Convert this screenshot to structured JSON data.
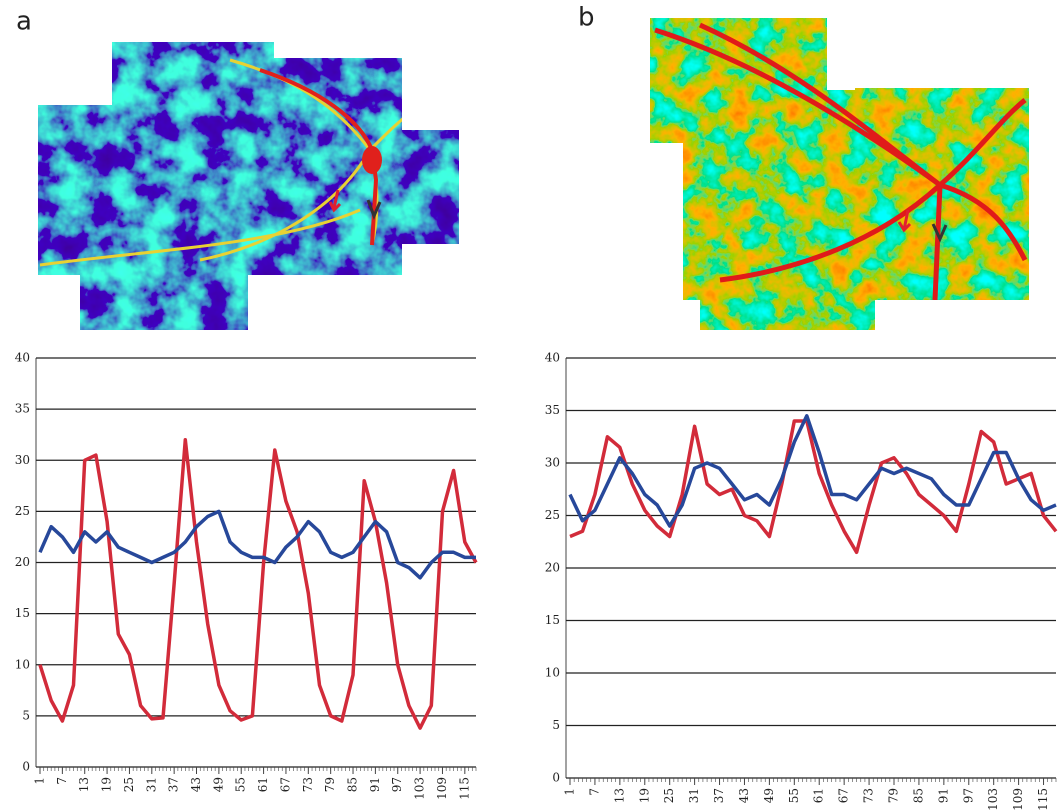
{
  "panel_labels": [
    "a",
    "b"
  ],
  "chart_data": [
    {
      "type": "line",
      "x": [
        1,
        4,
        7,
        10,
        13,
        16,
        19,
        22,
        25,
        28,
        31,
        34,
        37,
        40,
        43,
        46,
        49,
        52,
        55,
        58,
        61,
        64,
        67,
        70,
        73,
        76,
        79,
        82,
        85,
        88,
        91,
        94,
        97,
        100,
        103,
        106,
        109,
        112,
        115,
        118
      ],
      "xlim": [
        1,
        118
      ],
      "xticks": [
        1,
        7,
        13,
        19,
        25,
        31,
        37,
        43,
        49,
        55,
        61,
        67,
        73,
        79,
        85,
        91,
        97,
        103,
        109,
        115
      ],
      "ylim": [
        0,
        40
      ],
      "yticks": [
        0,
        5,
        10,
        15,
        20,
        25,
        30,
        35,
        40
      ],
      "grid": true,
      "series": [
        {
          "color": "#d22b3a",
          "values": [
            10,
            6.5,
            4.5,
            8,
            30,
            30.5,
            24,
            13,
            11,
            6,
            4.7,
            4.8,
            18,
            32,
            22,
            14,
            8,
            5.5,
            4.6,
            5,
            20,
            31,
            26,
            23,
            17,
            8,
            5,
            4.5,
            9,
            28,
            24,
            18,
            10,
            6,
            3.8,
            6,
            25,
            29,
            22,
            20
          ]
        },
        {
          "color": "#27489a",
          "values": [
            21,
            23.5,
            22.5,
            21,
            23,
            22,
            23,
            21.5,
            21,
            20.5,
            20,
            20.5,
            21,
            22,
            23.5,
            24.5,
            25,
            22,
            21,
            20.5,
            20.5,
            20,
            21.5,
            22.5,
            24,
            23,
            21,
            20.5,
            21,
            22.5,
            24,
            23,
            20,
            19.5,
            18.5,
            20,
            21,
            21,
            20.5,
            20.5
          ]
        }
      ]
    },
    {
      "type": "line",
      "x": [
        1,
        4,
        7,
        10,
        13,
        16,
        19,
        22,
        25,
        28,
        31,
        34,
        37,
        40,
        43,
        46,
        49,
        52,
        55,
        58,
        61,
        64,
        67,
        70,
        73,
        76,
        79,
        82,
        85,
        88,
        91,
        94,
        97,
        100,
        103,
        106,
        109,
        112,
        115,
        118
      ],
      "xlim": [
        1,
        118
      ],
      "xticks": [
        1,
        7,
        13,
        19,
        25,
        31,
        37,
        43,
        49,
        55,
        61,
        67,
        73,
        79,
        85,
        91,
        97,
        103,
        109,
        115
      ],
      "ylim": [
        0,
        40
      ],
      "yticks": [
        0,
        5,
        10,
        15,
        20,
        25,
        30,
        35,
        40
      ],
      "grid": true,
      "series": [
        {
          "color": "#d22b3a",
          "values": [
            23,
            23.5,
            27,
            32.5,
            31.5,
            28,
            25.5,
            24,
            23,
            27,
            33.5,
            28,
            27,
            27.5,
            25,
            24.5,
            23,
            28,
            34,
            34,
            29,
            26,
            23.5,
            21.5,
            26,
            30,
            30.5,
            29,
            27,
            26,
            25,
            23.5,
            28,
            33,
            32,
            28,
            28.5,
            29,
            25,
            23.5
          ]
        },
        {
          "color": "#27489a",
          "values": [
            27,
            24.5,
            25.5,
            28,
            30.5,
            29,
            27,
            26,
            24,
            26,
            29.5,
            30,
            29.5,
            28,
            26.5,
            27,
            26,
            28.5,
            32,
            34.5,
            31,
            27,
            27,
            26.5,
            28,
            29.5,
            29,
            29.5,
            29,
            28.5,
            27,
            26,
            26,
            28.5,
            31,
            31,
            28.5,
            26.5,
            25.5,
            26
          ]
        }
      ]
    }
  ]
}
